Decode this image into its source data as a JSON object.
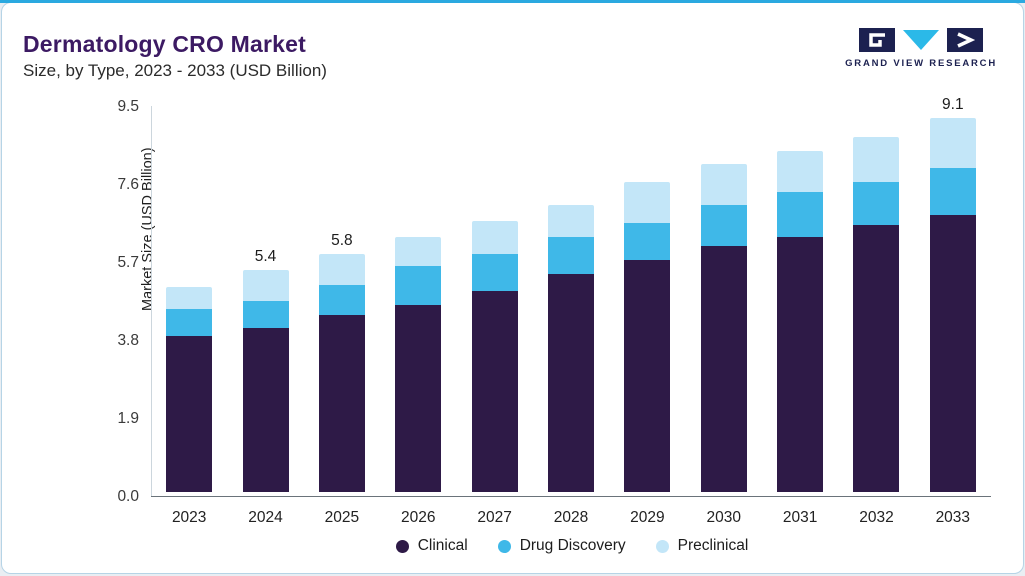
{
  "header": {
    "title": "Dermatology CRO Market",
    "subtitle": "Size, by Type, 2023 - 2033 (USD Billion)"
  },
  "logo": {
    "text": "GRAND VIEW RESEARCH",
    "navy": "#1c2150",
    "cyan": "#2bb9e8"
  },
  "chart_data": {
    "type": "bar",
    "stacked": true,
    "title": "Dermatology CRO Market Size, by Type, 2023 - 2033 (USD Billion)",
    "categories": [
      "2023",
      "2024",
      "2025",
      "2026",
      "2027",
      "2028",
      "2029",
      "2030",
      "2031",
      "2032",
      "2033"
    ],
    "series": [
      {
        "name": "Clinical",
        "color": "#2e1a47",
        "values": [
          3.8,
          4.0,
          4.3,
          4.55,
          4.9,
          5.3,
          5.65,
          6.0,
          6.2,
          6.5,
          6.75
        ]
      },
      {
        "name": "Drug Discovery",
        "color": "#3fb8e8",
        "values": [
          0.65,
          0.65,
          0.75,
          0.95,
          0.9,
          0.9,
          0.9,
          1.0,
          1.1,
          1.05,
          1.15
        ]
      },
      {
        "name": "Preclinical",
        "color": "#c3e6f8",
        "values": [
          0.55,
          0.75,
          0.75,
          0.7,
          0.8,
          0.8,
          1.0,
          1.0,
          1.0,
          1.1,
          1.2
        ]
      }
    ],
    "totals": [
      5.0,
      5.4,
      5.8,
      6.2,
      6.6,
      7.0,
      7.55,
      8.0,
      8.3,
      8.65,
      9.1
    ],
    "total_labels": [
      "",
      "5.4",
      "5.8",
      "",
      "",
      "",
      "",
      "",
      "",
      "",
      "9.1"
    ],
    "ylabel": "Market Size (USD Billion)",
    "yticks": [
      0.0,
      1.9,
      3.8,
      5.7,
      7.6,
      9.5
    ],
    "ylim": [
      0,
      9.5
    ],
    "grid": false,
    "legend_position": "bottom"
  }
}
